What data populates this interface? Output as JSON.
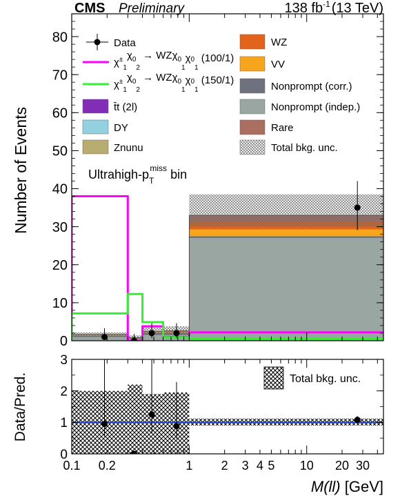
{
  "header": {
    "experiment": "CMS",
    "status": "Preliminary",
    "lumi_value": "138 fb",
    "lumi_exp": "-1",
    "energy": "(13 TeV)"
  },
  "chart_data": [
    {
      "type": "bar",
      "subtype": "stacked histogram with signal overlays",
      "ylabel": "Number of Events",
      "ylim": [
        0,
        86
      ],
      "y_ticks": [
        0,
        10,
        20,
        30,
        40,
        50,
        60,
        70,
        80
      ],
      "x_scale": "log",
      "xlim": [
        0.1,
        45
      ],
      "bin_edges": [
        0.1,
        0.3,
        0.4,
        0.6,
        1.0,
        45
      ],
      "annotation": {
        "main": "Ultrahigh-p",
        "sub": "T",
        "sup": "miss",
        "tail": " bin"
      },
      "background_stack_order": [
        "Nonprompt (indep.)",
        "Nonprompt (corr.)",
        "VV",
        "WZ",
        "Rare"
      ],
      "backgrounds": [
        {
          "name": "Nonprompt (indep.)",
          "color": "#9aa6a1",
          "values": [
            1.0,
            0.5,
            1.5,
            1.5,
            27.0
          ]
        },
        {
          "name": "Nonprompt (corr.)",
          "color": "#6e727e",
          "values": [
            0.4,
            0.2,
            0.6,
            0.6,
            0.5
          ]
        },
        {
          "name": "VV",
          "color": "#f6a51d",
          "values": [
            0.1,
            0.05,
            0.2,
            0.2,
            1.8
          ]
        },
        {
          "name": "WZ",
          "color": "#e2641b",
          "values": [
            0.1,
            0.05,
            0.1,
            0.2,
            2.0
          ]
        },
        {
          "name": "Rare",
          "color": "#aa6f61",
          "values": [
            0.1,
            0.05,
            0.1,
            0.1,
            1.7
          ]
        },
        {
          "name": "t̄t (2l)",
          "color": "#832db6",
          "values": [
            0,
            0,
            0,
            0,
            0
          ]
        },
        {
          "name": "DY",
          "color": "#94d1e0",
          "values": [
            0,
            0,
            0,
            0,
            0
          ]
        },
        {
          "name": "Znunu",
          "color": "#b9ac70",
          "values": [
            0,
            0,
            0,
            0,
            0
          ]
        }
      ],
      "total_unc": {
        "name": "Total bkg. unc.",
        "down": [
          1.0,
          0.4,
          1.6,
          1.6,
          30.0
        ],
        "up": [
          2.2,
          1.4,
          3.6,
          3.8,
          38.5
        ]
      },
      "signals": [
        {
          "name": "(100/1)",
          "color": "#ff00ff",
          "values": [
            38.0,
            0.0,
            3.8,
            1.0,
            2.2
          ]
        },
        {
          "name": "(150/1)",
          "color": "#33ee33",
          "values": [
            7.2,
            12.3,
            4.9,
            0.9,
            0.5
          ]
        }
      ],
      "data": {
        "name": "Data",
        "x": [
          0.19,
          0.34,
          0.48,
          0.78,
          27.0
        ],
        "y": [
          1,
          0,
          2,
          2,
          35
        ],
        "err_up": [
          2.3,
          1.8,
          2.6,
          2.6,
          7.0
        ],
        "err_down": [
          0.8,
          0,
          1.3,
          1.3,
          5.9
        ]
      },
      "legend": {
        "left": [
          "Data",
          "(100/1)",
          "(150/1)",
          "t̄t (2l)",
          "DY",
          "Znunu"
        ],
        "right": [
          "WZ",
          "VV",
          "Nonprompt (corr.)",
          "Nonprompt (indep.)",
          "Rare",
          "Total bkg. unc."
        ]
      }
    },
    {
      "type": "scatter",
      "subtype": "ratio panel",
      "ylabel": "Data/Pred.",
      "ylim": [
        0,
        3
      ],
      "y_ticks": [
        0,
        1,
        2,
        3
      ],
      "x_scale": "log",
      "xlim": [
        0.1,
        45
      ],
      "x_ticks": [
        0.1,
        0.2,
        1,
        2,
        3,
        4,
        5,
        10,
        20,
        30
      ],
      "x_tick_labels": [
        "0.1",
        "0.2",
        "1",
        "2",
        "3",
        "4",
        "5",
        "10",
        "20",
        "30"
      ],
      "xlabel_main": "M(ll)",
      "xlabel_unit": " [GeV]",
      "unc_band": {
        "name": "Total bkg. unc.",
        "down": [
          0.0,
          0.0,
          0.0,
          0.0,
          0.9
        ],
        "up": [
          2.0,
          2.2,
          1.9,
          1.95,
          1.12
        ]
      },
      "ratio": {
        "x": [
          0.19,
          0.34,
          0.48,
          0.78,
          27.0
        ],
        "y": [
          0.95,
          0.0,
          1.25,
          0.88,
          1.08
        ],
        "err_up": [
          2.05,
          0,
          1.75,
          1.4,
          0.12
        ],
        "err_down": [
          0.4,
          0,
          0.6,
          0.4,
          0.12
        ]
      },
      "reference_line": {
        "y": 1,
        "color": "#1f3fcc"
      }
    }
  ]
}
